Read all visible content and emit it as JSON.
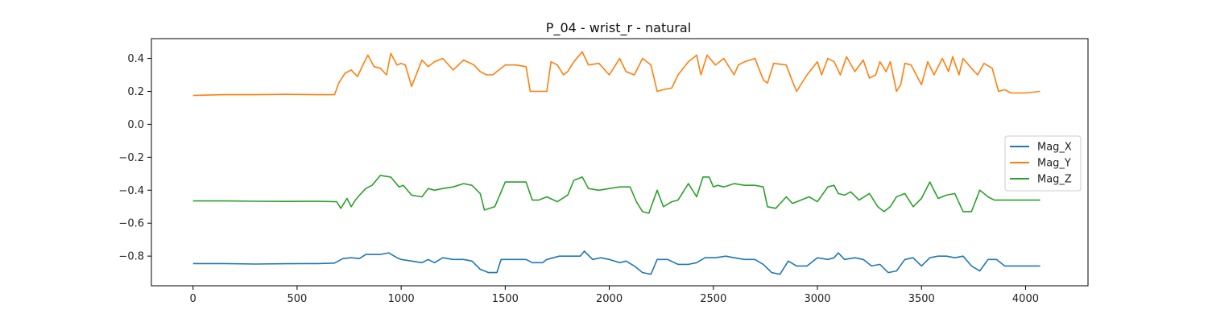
{
  "chart_data": {
    "type": "line",
    "title": "P_04 - wrist_r - natural",
    "xlabel": "",
    "ylabel": "",
    "xlim": [
      -200,
      4300
    ],
    "ylim": [
      -0.98,
      0.52
    ],
    "xticks": [
      0,
      500,
      1000,
      1500,
      2000,
      2500,
      3000,
      3500,
      4000
    ],
    "yticks": [
      0.4,
      0.2,
      0.0,
      -0.2,
      -0.4,
      -0.6,
      -0.8
    ],
    "ytick_labels": [
      "0.4",
      "0.2",
      "0.0",
      "−0.2",
      "−0.4",
      "−0.6",
      "−0.8"
    ],
    "grid": false,
    "legend_position": "center-right",
    "series": [
      {
        "name": "Mag_X",
        "color": "#1f77b4",
        "x": [
          0,
          150,
          300,
          450,
          600,
          680,
          720,
          760,
          800,
          830,
          870,
          900,
          940,
          980,
          1000,
          1050,
          1100,
          1130,
          1160,
          1200,
          1250,
          1300,
          1340,
          1380,
          1420,
          1460,
          1480,
          1550,
          1600,
          1630,
          1680,
          1700,
          1760,
          1820,
          1860,
          1880,
          1920,
          1960,
          2000,
          2050,
          2080,
          2120,
          2160,
          2200,
          2230,
          2280,
          2330,
          2380,
          2420,
          2460,
          2510,
          2560,
          2600,
          2650,
          2700,
          2740,
          2780,
          2820,
          2860,
          2900,
          2950,
          3000,
          3050,
          3080,
          3100,
          3130,
          3180,
          3220,
          3260,
          3300,
          3340,
          3380,
          3420,
          3460,
          3500,
          3540,
          3580,
          3620,
          3660,
          3700,
          3740,
          3780,
          3820,
          3860,
          3900,
          3950,
          4000,
          4070
        ],
        "y": [
          -0.845,
          -0.845,
          -0.848,
          -0.846,
          -0.845,
          -0.842,
          -0.815,
          -0.81,
          -0.815,
          -0.79,
          -0.79,
          -0.79,
          -0.78,
          -0.81,
          -0.82,
          -0.83,
          -0.84,
          -0.82,
          -0.84,
          -0.81,
          -0.82,
          -0.82,
          -0.83,
          -0.88,
          -0.9,
          -0.9,
          -0.82,
          -0.82,
          -0.82,
          -0.84,
          -0.84,
          -0.82,
          -0.8,
          -0.8,
          -0.8,
          -0.77,
          -0.82,
          -0.81,
          -0.82,
          -0.84,
          -0.83,
          -0.86,
          -0.9,
          -0.91,
          -0.82,
          -0.82,
          -0.85,
          -0.85,
          -0.84,
          -0.81,
          -0.81,
          -0.8,
          -0.81,
          -0.82,
          -0.82,
          -0.85,
          -0.9,
          -0.91,
          -0.83,
          -0.86,
          -0.86,
          -0.81,
          -0.82,
          -0.81,
          -0.78,
          -0.82,
          -0.81,
          -0.82,
          -0.86,
          -0.85,
          -0.9,
          -0.89,
          -0.82,
          -0.81,
          -0.86,
          -0.81,
          -0.8,
          -0.8,
          -0.81,
          -0.8,
          -0.86,
          -0.89,
          -0.82,
          -0.82,
          -0.86,
          -0.86,
          -0.86,
          -0.86
        ]
      },
      {
        "name": "Mag_Y",
        "color": "#ff7f0e",
        "x": [
          0,
          150,
          300,
          450,
          600,
          680,
          700,
          730,
          760,
          790,
          820,
          840,
          870,
          900,
          930,
          950,
          980,
          1000,
          1020,
          1050,
          1100,
          1130,
          1160,
          1200,
          1250,
          1300,
          1350,
          1380,
          1410,
          1440,
          1500,
          1550,
          1600,
          1620,
          1650,
          1700,
          1720,
          1750,
          1780,
          1800,
          1830,
          1870,
          1900,
          1950,
          2000,
          2050,
          2080,
          2120,
          2160,
          2200,
          2230,
          2260,
          2300,
          2330,
          2380,
          2420,
          2440,
          2470,
          2510,
          2550,
          2600,
          2620,
          2650,
          2700,
          2740,
          2760,
          2790,
          2850,
          2880,
          2900,
          2950,
          3000,
          3020,
          3050,
          3080,
          3110,
          3140,
          3180,
          3220,
          3250,
          3280,
          3300,
          3330,
          3350,
          3380,
          3400,
          3420,
          3450,
          3500,
          3530,
          3560,
          3600,
          3630,
          3650,
          3680,
          3700,
          3740,
          3770,
          3800,
          3840,
          3870,
          3900,
          3930,
          3950,
          4000,
          4070
        ],
        "y": [
          0.175,
          0.18,
          0.18,
          0.182,
          0.18,
          0.18,
          0.25,
          0.31,
          0.33,
          0.29,
          0.37,
          0.42,
          0.35,
          0.34,
          0.3,
          0.43,
          0.36,
          0.37,
          0.36,
          0.23,
          0.39,
          0.35,
          0.38,
          0.4,
          0.33,
          0.39,
          0.36,
          0.32,
          0.3,
          0.3,
          0.36,
          0.36,
          0.35,
          0.2,
          0.2,
          0.2,
          0.38,
          0.36,
          0.3,
          0.32,
          0.38,
          0.44,
          0.36,
          0.37,
          0.3,
          0.4,
          0.32,
          0.3,
          0.4,
          0.36,
          0.2,
          0.21,
          0.22,
          0.3,
          0.38,
          0.42,
          0.3,
          0.42,
          0.36,
          0.4,
          0.3,
          0.36,
          0.38,
          0.4,
          0.27,
          0.25,
          0.37,
          0.36,
          0.26,
          0.2,
          0.3,
          0.38,
          0.3,
          0.4,
          0.38,
          0.3,
          0.41,
          0.32,
          0.39,
          0.28,
          0.3,
          0.38,
          0.32,
          0.38,
          0.2,
          0.24,
          0.37,
          0.36,
          0.24,
          0.38,
          0.3,
          0.4,
          0.32,
          0.41,
          0.3,
          0.4,
          0.34,
          0.3,
          0.37,
          0.34,
          0.2,
          0.21,
          0.19,
          0.19,
          0.19,
          0.2
        ]
      },
      {
        "name": "Mag_Z",
        "color": "#2ca02c",
        "x": [
          0,
          150,
          300,
          450,
          600,
          690,
          710,
          740,
          760,
          780,
          800,
          830,
          860,
          900,
          950,
          990,
          1010,
          1050,
          1100,
          1130,
          1160,
          1200,
          1250,
          1300,
          1340,
          1380,
          1400,
          1450,
          1500,
          1550,
          1600,
          1630,
          1660,
          1700,
          1750,
          1800,
          1830,
          1870,
          1900,
          1950,
          2000,
          2050,
          2100,
          2130,
          2160,
          2190,
          2230,
          2260,
          2300,
          2330,
          2380,
          2420,
          2450,
          2480,
          2500,
          2520,
          2550,
          2600,
          2650,
          2700,
          2740,
          2760,
          2800,
          2850,
          2880,
          2920,
          2960,
          3000,
          3050,
          3080,
          3100,
          3130,
          3160,
          3200,
          3250,
          3290,
          3320,
          3350,
          3380,
          3420,
          3460,
          3500,
          3540,
          3580,
          3620,
          3660,
          3700,
          3740,
          3780,
          3820,
          3850,
          3900,
          3950,
          4000,
          4070
        ],
        "y": [
          -0.465,
          -0.465,
          -0.467,
          -0.468,
          -0.467,
          -0.47,
          -0.51,
          -0.45,
          -0.5,
          -0.46,
          -0.43,
          -0.39,
          -0.37,
          -0.31,
          -0.32,
          -0.38,
          -0.37,
          -0.43,
          -0.44,
          -0.39,
          -0.4,
          -0.39,
          -0.38,
          -0.36,
          -0.37,
          -0.42,
          -0.52,
          -0.5,
          -0.35,
          -0.35,
          -0.35,
          -0.46,
          -0.46,
          -0.44,
          -0.47,
          -0.43,
          -0.34,
          -0.32,
          -0.39,
          -0.4,
          -0.39,
          -0.38,
          -0.38,
          -0.47,
          -0.53,
          -0.54,
          -0.4,
          -0.5,
          -0.47,
          -0.46,
          -0.36,
          -0.44,
          -0.32,
          -0.32,
          -0.38,
          -0.37,
          -0.38,
          -0.36,
          -0.37,
          -0.37,
          -0.38,
          -0.5,
          -0.51,
          -0.44,
          -0.48,
          -0.46,
          -0.44,
          -0.47,
          -0.38,
          -0.37,
          -0.42,
          -0.43,
          -0.41,
          -0.46,
          -0.42,
          -0.5,
          -0.53,
          -0.5,
          -0.44,
          -0.42,
          -0.5,
          -0.45,
          -0.35,
          -0.45,
          -0.43,
          -0.42,
          -0.53,
          -0.53,
          -0.4,
          -0.44,
          -0.46,
          -0.46,
          -0.46,
          -0.46,
          -0.46
        ]
      }
    ]
  }
}
